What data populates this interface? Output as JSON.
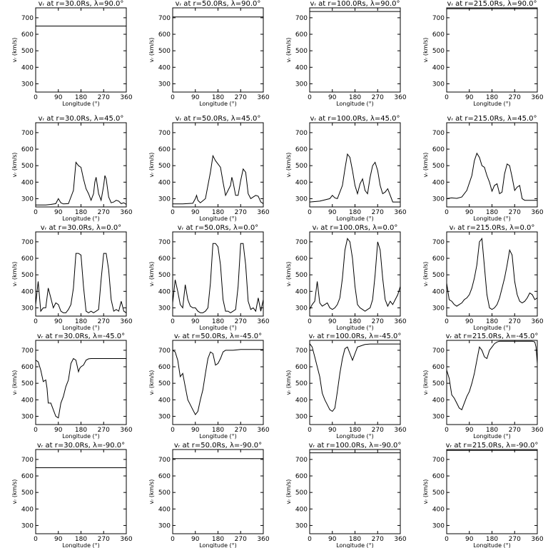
{
  "figure": {
    "rows": 5,
    "cols": 4,
    "xlabel": "Longitude (°)",
    "ylabel": "vᵣ (km/s)",
    "xlim": [
      0,
      360
    ],
    "ylim": [
      250,
      760
    ],
    "xticks": [
      "0",
      "90",
      "180",
      "270",
      "360"
    ],
    "yticks": [
      "300",
      "400",
      "500",
      "600",
      "700"
    ]
  },
  "chart_data": [
    {
      "type": "line",
      "title": "vᵣ at r=30.0Rs, λ=90.0°",
      "x": [
        0,
        360
      ],
      "y": [
        650,
        650
      ]
    },
    {
      "type": "line",
      "title": "vᵣ at r=50.0Rs, λ=90.0°",
      "x": [
        0,
        360
      ],
      "y": [
        705,
        705
      ]
    },
    {
      "type": "line",
      "title": "vᵣ at r=100.0Rs, λ=90.0°",
      "x": [
        0,
        360
      ],
      "y": [
        738,
        738
      ]
    },
    {
      "type": "line",
      "title": "vᵣ at r=215.0Rs, λ=90.0°",
      "x": [
        0,
        360
      ],
      "y": [
        755,
        755
      ]
    },
    {
      "type": "line",
      "title": "vᵣ at r=30.0Rs, λ=45.0°",
      "x": [
        0,
        40,
        60,
        80,
        90,
        100,
        110,
        130,
        150,
        160,
        170,
        180,
        190,
        200,
        210,
        220,
        230,
        235,
        240,
        250,
        260,
        270,
        275,
        280,
        290,
        300,
        310,
        320,
        330,
        340,
        350,
        360
      ],
      "y": [
        262,
        262,
        265,
        270,
        300,
        275,
        268,
        270,
        350,
        520,
        500,
        490,
        420,
        360,
        330,
        290,
        330,
        400,
        430,
        330,
        290,
        380,
        440,
        420,
        310,
        275,
        280,
        290,
        285,
        270,
        275,
        265
      ]
    },
    {
      "type": "line",
      "title": "vᵣ at r=50.0Rs, λ=45.0°",
      "x": [
        0,
        40,
        80,
        90,
        95,
        100,
        110,
        130,
        150,
        160,
        170,
        180,
        190,
        200,
        210,
        220,
        230,
        235,
        240,
        250,
        260,
        270,
        280,
        290,
        300,
        310,
        320,
        330,
        340,
        350,
        360
      ],
      "y": [
        268,
        268,
        272,
        300,
        320,
        290,
        275,
        300,
        460,
        560,
        530,
        510,
        490,
        400,
        320,
        350,
        380,
        430,
        400,
        320,
        320,
        410,
        480,
        460,
        330,
        300,
        310,
        320,
        315,
        280,
        270
      ]
    },
    {
      "type": "line",
      "title": "vᵣ at r=100.0Rs, λ=45.0°",
      "x": [
        0,
        40,
        80,
        90,
        100,
        110,
        130,
        140,
        150,
        160,
        170,
        180,
        190,
        200,
        210,
        220,
        230,
        240,
        250,
        260,
        270,
        280,
        290,
        300,
        310,
        320,
        330,
        340,
        350,
        360
      ],
      "y": [
        280,
        285,
        300,
        320,
        305,
        300,
        380,
        480,
        570,
        550,
        470,
        380,
        330,
        390,
        420,
        350,
        330,
        430,
        500,
        520,
        470,
        380,
        330,
        340,
        360,
        320,
        280,
        280,
        280,
        280
      ]
    },
    {
      "type": "line",
      "title": "vᵣ at r=215.0Rs, λ=45.0°",
      "x": [
        0,
        20,
        40,
        60,
        80,
        100,
        110,
        120,
        130,
        140,
        150,
        160,
        170,
        180,
        190,
        200,
        210,
        220,
        230,
        240,
        250,
        260,
        270,
        280,
        290,
        300,
        310,
        330,
        360
      ],
      "y": [
        300,
        305,
        302,
        310,
        350,
        440,
        530,
        575,
        550,
        500,
        490,
        440,
        400,
        345,
        380,
        390,
        330,
        340,
        450,
        510,
        500,
        430,
        350,
        370,
        380,
        300,
        290,
        290,
        290
      ]
    },
    {
      "type": "line",
      "title": "vᵣ at r=30.0Rs, λ=0.0°",
      "x": [
        0,
        10,
        20,
        30,
        40,
        50,
        60,
        70,
        80,
        90,
        100,
        110,
        120,
        130,
        140,
        150,
        160,
        170,
        180,
        190,
        200,
        210,
        220,
        230,
        240,
        250,
        260,
        270,
        280,
        290,
        300,
        310,
        320,
        330,
        340,
        350,
        360
      ],
      "y": [
        320,
        460,
        280,
        300,
        300,
        420,
        360,
        300,
        330,
        320,
        280,
        270,
        270,
        290,
        320,
        420,
        630,
        630,
        620,
        430,
        280,
        270,
        280,
        270,
        280,
        290,
        470,
        630,
        630,
        530,
        350,
        280,
        290,
        280,
        340,
        280,
        270
      ]
    },
    {
      "type": "line",
      "title": "vᵣ at r=50.0Rs, λ=0.0°",
      "x": [
        0,
        10,
        20,
        30,
        40,
        50,
        60,
        70,
        80,
        90,
        100,
        110,
        120,
        130,
        140,
        150,
        160,
        170,
        180,
        190,
        200,
        210,
        220,
        230,
        240,
        250,
        260,
        270,
        280,
        290,
        300,
        310,
        320,
        330,
        340,
        350,
        360
      ],
      "y": [
        330,
        470,
        400,
        320,
        300,
        440,
        350,
        310,
        300,
        300,
        280,
        270,
        270,
        280,
        300,
        450,
        690,
        690,
        670,
        560,
        350,
        280,
        280,
        270,
        280,
        290,
        430,
        690,
        690,
        560,
        340,
        290,
        300,
        280,
        360,
        280,
        350
      ]
    },
    {
      "type": "line",
      "title": "vᵣ at r=100.0Rs, λ=0.0°",
      "x": [
        0,
        10,
        20,
        30,
        40,
        50,
        60,
        70,
        80,
        90,
        100,
        110,
        120,
        130,
        140,
        150,
        160,
        170,
        180,
        190,
        200,
        210,
        220,
        230,
        240,
        250,
        260,
        270,
        280,
        290,
        300,
        310,
        320,
        330,
        340,
        350,
        360
      ],
      "y": [
        290,
        320,
        340,
        460,
        330,
        310,
        320,
        330,
        300,
        290,
        300,
        320,
        360,
        480,
        650,
        720,
        700,
        600,
        430,
        320,
        300,
        290,
        280,
        290,
        300,
        350,
        500,
        700,
        650,
        480,
        350,
        310,
        340,
        320,
        350,
        380,
        430
      ]
    },
    {
      "type": "line",
      "title": "vᵣ at r=215.0Rs, λ=0.0°",
      "x": [
        0,
        10,
        20,
        30,
        40,
        50,
        60,
        70,
        80,
        90,
        100,
        110,
        120,
        130,
        140,
        150,
        160,
        170,
        180,
        190,
        200,
        210,
        220,
        230,
        240,
        250,
        260,
        270,
        280,
        290,
        300,
        310,
        320,
        330,
        340,
        350,
        360
      ],
      "y": [
        450,
        350,
        340,
        320,
        310,
        320,
        330,
        350,
        360,
        380,
        420,
        480,
        560,
        700,
        720,
        550,
        380,
        300,
        290,
        300,
        320,
        360,
        420,
        480,
        560,
        650,
        620,
        460,
        380,
        340,
        330,
        340,
        360,
        390,
        380,
        350,
        360
      ]
    },
    {
      "type": "line",
      "title": "vᵣ at r=30.0Rs, λ=-45.0°",
      "x": [
        0,
        10,
        20,
        30,
        40,
        45,
        50,
        60,
        70,
        80,
        90,
        100,
        110,
        120,
        130,
        140,
        150,
        160,
        170,
        175,
        180,
        190,
        200,
        210,
        220,
        240,
        270,
        300,
        360
      ],
      "y": [
        640,
        630,
        580,
        510,
        520,
        470,
        380,
        380,
        340,
        300,
        290,
        380,
        420,
        480,
        520,
        620,
        650,
        640,
        570,
        590,
        600,
        610,
        640,
        648,
        650,
        650,
        650,
        650,
        650
      ]
    },
    {
      "type": "line",
      "title": "vᵣ at r=50.0Rs, λ=-45.0°",
      "x": [
        0,
        10,
        20,
        30,
        40,
        50,
        60,
        70,
        80,
        90,
        100,
        110,
        120,
        130,
        140,
        150,
        160,
        170,
        180,
        190,
        200,
        210,
        220,
        240,
        270,
        300,
        360
      ],
      "y": [
        700,
        690,
        640,
        540,
        560,
        480,
        400,
        370,
        340,
        310,
        330,
        400,
        460,
        560,
        650,
        690,
        680,
        610,
        620,
        650,
        690,
        700,
        700,
        700,
        705,
        705,
        705
      ]
    },
    {
      "type": "line",
      "title": "vᵣ at r=100.0Rs, λ=-45.0°",
      "x": [
        0,
        10,
        20,
        30,
        40,
        50,
        60,
        70,
        80,
        90,
        100,
        110,
        120,
        130,
        140,
        150,
        160,
        170,
        180,
        190,
        200,
        210,
        220,
        240,
        270,
        300,
        360
      ],
      "y": [
        740,
        720,
        660,
        600,
        540,
        440,
        400,
        370,
        340,
        330,
        350,
        450,
        560,
        650,
        710,
        720,
        680,
        640,
        680,
        720,
        725,
        730,
        735,
        738,
        738,
        738,
        738
      ]
    },
    {
      "type": "line",
      "title": "vᵣ at r=215.0Rs, λ=-45.0°",
      "x": [
        0,
        10,
        20,
        30,
        40,
        50,
        60,
        70,
        80,
        90,
        100,
        110,
        120,
        130,
        140,
        150,
        160,
        170,
        180,
        190,
        200,
        210,
        220,
        240,
        270,
        300,
        340,
        350,
        355,
        360
      ],
      "y": [
        580,
        530,
        430,
        410,
        380,
        350,
        340,
        380,
        420,
        450,
        500,
        560,
        640,
        720,
        700,
        660,
        650,
        700,
        720,
        740,
        750,
        755,
        755,
        755,
        755,
        755,
        755,
        750,
        720,
        620
      ]
    },
    {
      "type": "line",
      "title": "vᵣ at r=30.0Rs, λ=-90.0°",
      "x": [
        0,
        360
      ],
      "y": [
        650,
        650
      ]
    },
    {
      "type": "line",
      "title": "vᵣ at r=50.0Rs, λ=-90.0°",
      "x": [
        0,
        360
      ],
      "y": [
        705,
        705
      ]
    },
    {
      "type": "line",
      "title": "vᵣ at r=100.0Rs, λ=-90.0°",
      "x": [
        0,
        360
      ],
      "y": [
        740,
        740
      ]
    },
    {
      "type": "line",
      "title": "vᵣ at r=215.0Rs, λ=-90.0°",
      "x": [
        0,
        360
      ],
      "y": [
        755,
        755
      ]
    }
  ]
}
